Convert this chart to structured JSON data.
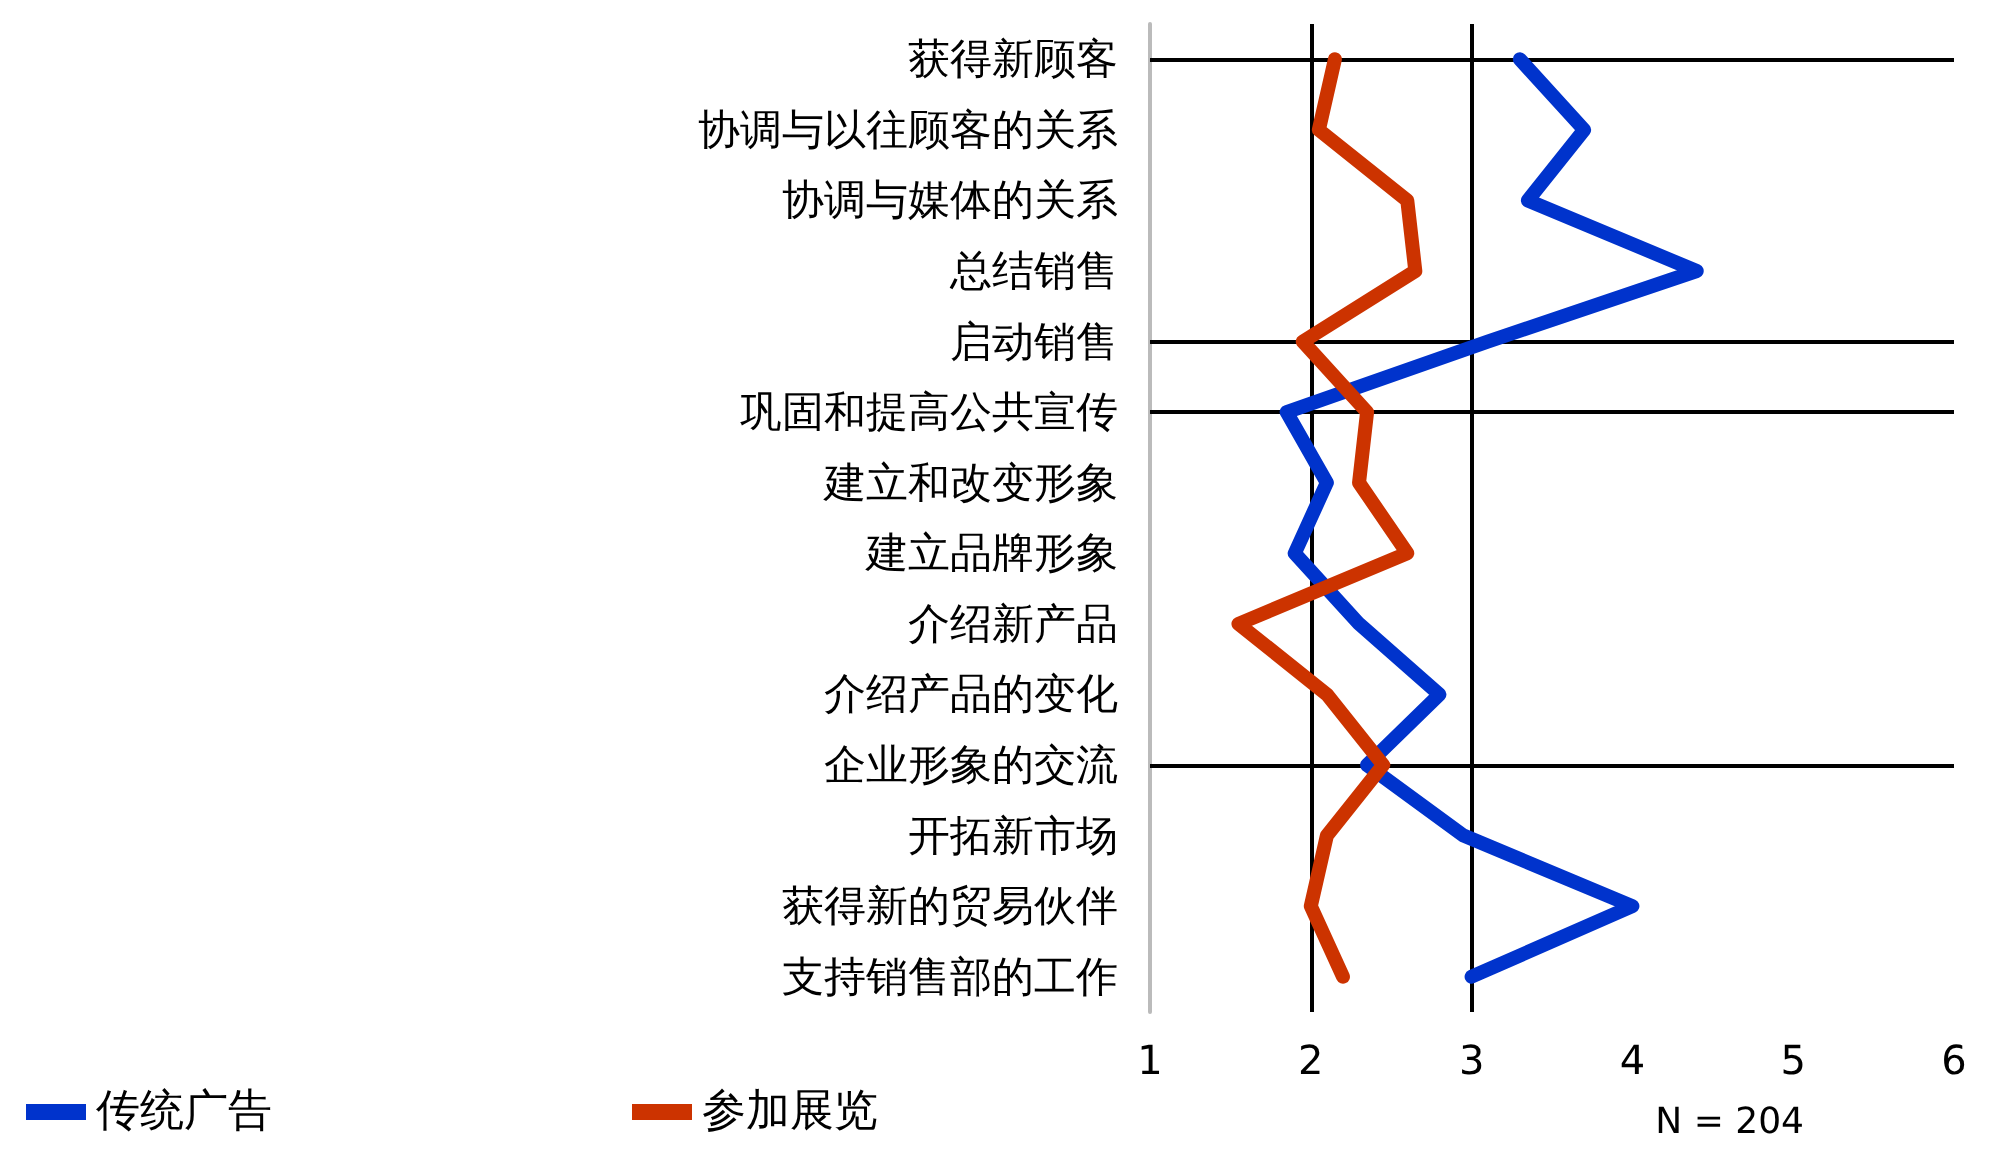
{
  "chart_data": {
    "type": "line",
    "orientation": "horizontal",
    "categories": [
      "获得新顾客",
      "协调与以往顾客的关系",
      "协调与媒体的关系",
      "总结销售",
      "启动销售",
      "巩固和提高公共宣传",
      "建立和改变形象",
      "建立品牌形象",
      "介绍新产品",
      "介绍产品的变化",
      "企业形象的交流",
      "开拓新市场",
      "获得新的贸易伙伴",
      "支持销售部的工作"
    ],
    "series": [
      {
        "name": "传统广告",
        "color": "#0033cc",
        "values": [
          3.3,
          3.7,
          3.35,
          4.4,
          3.1,
          1.85,
          2.1,
          1.9,
          2.3,
          2.8,
          2.35,
          2.95,
          4.0,
          3.0
        ]
      },
      {
        "name": "参加展览",
        "color": "#cc3300",
        "values": [
          2.15,
          2.05,
          2.6,
          2.65,
          1.95,
          2.35,
          2.3,
          2.6,
          1.55,
          2.1,
          2.45,
          2.1,
          2.0,
          2.2
        ]
      }
    ],
    "xlim": [
      1,
      6
    ],
    "xticks": [
      1,
      2,
      3,
      4,
      5,
      6
    ],
    "marker": "none",
    "line_style": "solid",
    "grid": false,
    "legend": "bottom left",
    "ref_lines": [
      {
        "axis": "x",
        "value": 2,
        "color": "#000000"
      },
      {
        "axis": "x",
        "value": 3,
        "color": "#000000"
      },
      {
        "axis": "y",
        "value": "获得新顾客",
        "color": "#000000"
      },
      {
        "axis": "y",
        "value": "启动销售",
        "color": "#000000"
      },
      {
        "axis": "y",
        "value": "巩固和提高公共宣传",
        "color": "#000000"
      },
      {
        "axis": "y",
        "value": "企业形象的交流",
        "color": "#000000"
      }
    ],
    "annotations": [
      "N = 204"
    ]
  }
}
